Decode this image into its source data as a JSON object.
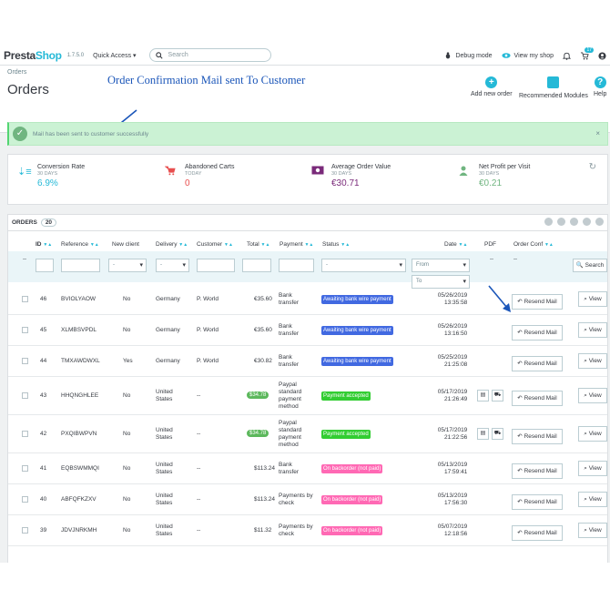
{
  "topbar": {
    "logo_a": "Presta",
    "logo_b": "Shop",
    "version": "1.7.5.0",
    "quick_access": "Quick Access ▾",
    "search_placeholder": "Search",
    "debug": "Debug mode",
    "view_shop": "View my shop",
    "notif_count": "17"
  },
  "header": {
    "breadcrumb": "Orders",
    "title": "Orders",
    "annotation": "Order Confirmation Mail sent To Customer",
    "add_new": "Add new order",
    "recommended": "Recommended Modules",
    "help": "Help"
  },
  "alert": {
    "message": "Mail has been sent to customer successfully"
  },
  "kpis": [
    {
      "label": "Conversion Rate",
      "sub": "30 DAYS",
      "value": "6.9%",
      "color": "#25b9d7"
    },
    {
      "label": "Abandoned Carts",
      "sub": "TODAY",
      "value": "0",
      "color": "#e84f4f"
    },
    {
      "label": "Average Order Value",
      "sub": "30 DAYS",
      "value": "€30.71",
      "color": "#7a2a7a"
    },
    {
      "label": "Net Profit per Visit",
      "sub": "30 DAYS",
      "value": "€0.21",
      "color": "#70b580"
    }
  ],
  "orders": {
    "label": "ORDERS",
    "count": "20",
    "headers": {
      "id": "ID",
      "reference": "Reference",
      "new_client": "New client",
      "delivery": "Delivery",
      "customer": "Customer",
      "total": "Total",
      "payment": "Payment",
      "status": "Status",
      "date": "Date",
      "pdf": "PDF",
      "order_conf": "Order Conf"
    },
    "filters": {
      "dashes": "--",
      "sel": "-",
      "from": "From",
      "to": "To",
      "pdf_dash": "--",
      "conf_dash": "--",
      "search": "Search"
    },
    "resend_label": "Resend Mail",
    "view_label": "View",
    "rows": [
      {
        "id": "46",
        "ref": "BVIOLYAOW",
        "new": "No",
        "delivery": "Germany",
        "customer": "P. World",
        "total": "€35.60",
        "pill": false,
        "payment": "Bank\ntransfer",
        "status": "Awaiting bank wire payment",
        "status_color": "#4169e1",
        "date": "05/26/2019",
        "time": "13:35:58",
        "pdf": false
      },
      {
        "id": "45",
        "ref": "XLMBSVPDL",
        "new": "No",
        "delivery": "Germany",
        "customer": "P. World",
        "total": "€35.60",
        "pill": false,
        "payment": "Bank\ntransfer",
        "status": "Awaiting bank wire payment",
        "status_color": "#4169e1",
        "date": "05/26/2019",
        "time": "13:16:50",
        "pdf": false
      },
      {
        "id": "44",
        "ref": "TMXAWDWXL",
        "new": "Yes",
        "delivery": "Germany",
        "customer": "P. World",
        "total": "€30.82",
        "pill": false,
        "payment": "Bank\ntransfer",
        "status": "Awaiting bank wire payment",
        "status_color": "#4169e1",
        "date": "05/25/2019",
        "time": "21:25:08",
        "pdf": false
      },
      {
        "id": "43",
        "ref": "HHQNGHLEE",
        "new": "No",
        "delivery": "United\nStates",
        "customer": "--",
        "total": "$34.78",
        "pill": true,
        "payment": "Paypal\nstandard\npayment\nmethod",
        "status": "Payment accepted",
        "status_color": "#32cd32",
        "date": "05/17/2019",
        "time": "21:26:49",
        "pdf": true
      },
      {
        "id": "42",
        "ref": "PXQIBWPVN",
        "new": "No",
        "delivery": "United\nStates",
        "customer": "--",
        "total": "$34.78",
        "pill": true,
        "payment": "Paypal\nstandard\npayment\nmethod",
        "status": "Payment accepted",
        "status_color": "#32cd32",
        "date": "05/17/2019",
        "time": "21:22:56",
        "pdf": true
      },
      {
        "id": "41",
        "ref": "EQBSWMMQI",
        "new": "No",
        "delivery": "United\nStates",
        "customer": "--",
        "total": "$113.24",
        "pill": false,
        "payment": "Bank\ntransfer",
        "status": "On backorder (not paid)",
        "status_color": "#ff69b4",
        "date": "05/13/2019",
        "time": "17:59:41",
        "pdf": false
      },
      {
        "id": "40",
        "ref": "ABFQFKZXV",
        "new": "No",
        "delivery": "United\nStates",
        "customer": "--",
        "total": "$113.24",
        "pill": false,
        "payment": "Payments by\ncheck",
        "status": "On backorder (not paid)",
        "status_color": "#ff69b4",
        "date": "05/13/2019",
        "time": "17:56:30",
        "pdf": false
      },
      {
        "id": "39",
        "ref": "JDVJNRKMH",
        "new": "No",
        "delivery": "United\nStates",
        "customer": "--",
        "total": "$11.32",
        "pill": false,
        "payment": "Payments by\ncheck",
        "status": "On backorder (not paid)",
        "status_color": "#ff69b4",
        "date": "05/07/2019",
        "time": "12:18:56",
        "pdf": false
      }
    ]
  }
}
